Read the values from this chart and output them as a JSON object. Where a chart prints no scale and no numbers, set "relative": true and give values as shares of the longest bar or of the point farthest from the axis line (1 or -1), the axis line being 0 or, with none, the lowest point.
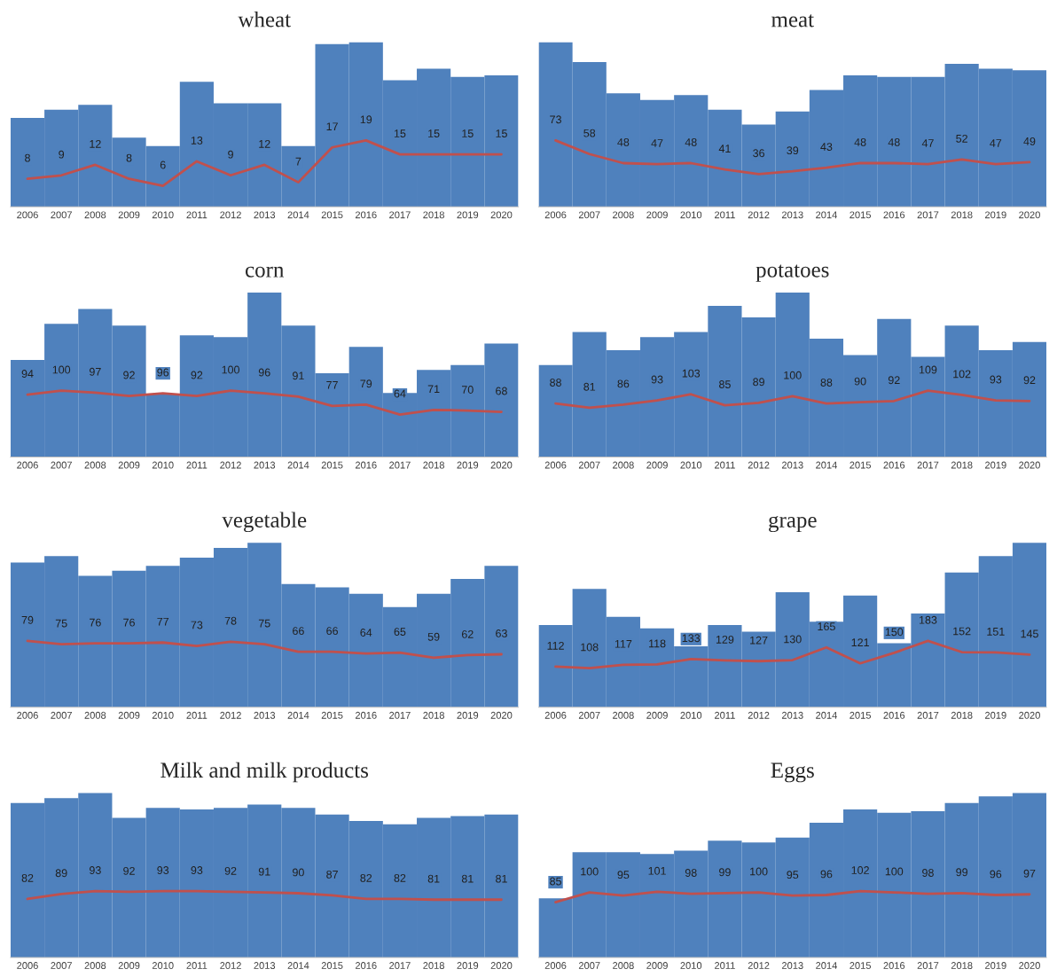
{
  "chart_data": [
    {
      "type": "bar",
      "title": "wheat",
      "relative": true,
      "categories": [
        "2006",
        "2007",
        "2008",
        "2009",
        "2010",
        "2011",
        "2012",
        "2013",
        "2014",
        "2015",
        "2016",
        "2017",
        "2018",
        "2019",
        "2020"
      ],
      "color": "#4f81bd",
      "values": [
        0.54,
        0.59,
        0.62,
        0.42,
        0.37,
        0.76,
        0.63,
        0.63,
        0.37,
        0.99,
        1,
        0.77,
        0.84,
        0.79,
        0.8
      ]
    },
    {
      "type": "line",
      "categories": [
        "2006",
        "2007",
        "2008",
        "2009",
        "2010",
        "2011",
        "2012",
        "2013",
        "2014",
        "2015",
        "2016",
        "2017",
        "2018",
        "2019",
        "2020"
      ],
      "color": "#c0504d",
      "data_labels": true,
      "tick_labels": false,
      "values": [
        8,
        9,
        12,
        8,
        6,
        13,
        9,
        12,
        7,
        17,
        19,
        15,
        15,
        15,
        15
      ]
    },
    {
      "type": "bar",
      "title": "meat",
      "relative": true,
      "categories": [
        "2006",
        "2007",
        "2008",
        "2009",
        "2010",
        "2011",
        "2012",
        "2013",
        "2014",
        "2015",
        "2016",
        "2017",
        "2018",
        "2019",
        "2020"
      ],
      "color": "#4f81bd",
      "values": [
        1,
        0.88,
        0.69,
        0.65,
        0.68,
        0.59,
        0.5,
        0.58,
        0.71,
        0.8,
        0.79,
        0.79,
        0.87,
        0.84,
        0.83
      ]
    },
    {
      "type": "line",
      "categories": [
        "2006",
        "2007",
        "2008",
        "2009",
        "2010",
        "2011",
        "2012",
        "2013",
        "2014",
        "2015",
        "2016",
        "2017",
        "2018",
        "2019",
        "2020"
      ],
      "color": "#c0504d",
      "data_labels": true,
      "tick_labels": false,
      "values": [
        73,
        58,
        48,
        47,
        48,
        41,
        36,
        39,
        43,
        48,
        48,
        47,
        52,
        47,
        49
      ]
    },
    {
      "type": "bar",
      "title": "corn",
      "relative": true,
      "categories": [
        "2006",
        "2007",
        "2008",
        "2009",
        "2010",
        "2011",
        "2012",
        "2013",
        "2014",
        "2015",
        "2016",
        "2017",
        "2018",
        "2019",
        "2020"
      ],
      "color": "#4f81bd",
      "values": [
        0.59,
        0.81,
        0.9,
        0.8,
        0.38,
        0.74,
        0.73,
        1,
        0.8,
        0.51,
        0.67,
        0.39,
        0.53,
        0.56,
        0.69
      ]
    },
    {
      "type": "line",
      "categories": [
        "2006",
        "2007",
        "2008",
        "2009",
        "2010",
        "2011",
        "2012",
        "2013",
        "2014",
        "2015",
        "2016",
        "2017",
        "2018",
        "2019",
        "2020"
      ],
      "color": "#c0504d",
      "data_labels": true,
      "tick_labels": false,
      "values": [
        94,
        100,
        97,
        92,
        96,
        92,
        100,
        96,
        91,
        77,
        79,
        64,
        71,
        70,
        68
      ]
    },
    {
      "type": "bar",
      "title": "potatoes",
      "relative": true,
      "categories": [
        "2006",
        "2007",
        "2008",
        "2009",
        "2010",
        "2011",
        "2012",
        "2013",
        "2014",
        "2015",
        "2016",
        "2017",
        "2018",
        "2019",
        "2020"
      ],
      "color": "#4f81bd",
      "values": [
        0.56,
        0.76,
        0.65,
        0.73,
        0.76,
        0.92,
        0.85,
        1,
        0.72,
        0.62,
        0.84,
        0.61,
        0.8,
        0.65,
        0.7
      ]
    },
    {
      "type": "line",
      "categories": [
        "2006",
        "2007",
        "2008",
        "2009",
        "2010",
        "2011",
        "2012",
        "2013",
        "2014",
        "2015",
        "2016",
        "2017",
        "2018",
        "2019",
        "2020"
      ],
      "color": "#c0504d",
      "data_labels": true,
      "tick_labels": false,
      "values": [
        88,
        81,
        86,
        93,
        103,
        85,
        89,
        100,
        88,
        90,
        92,
        109,
        102,
        93,
        92
      ]
    },
    {
      "type": "bar",
      "title": "vegetable",
      "relative": true,
      "categories": [
        "2006",
        "2007",
        "2008",
        "2009",
        "2010",
        "2011",
        "2012",
        "2013",
        "2014",
        "2015",
        "2016",
        "2017",
        "2018",
        "2019",
        "2020"
      ],
      "color": "#4f81bd",
      "values": [
        0.88,
        0.92,
        0.8,
        0.83,
        0.86,
        0.91,
        0.97,
        1,
        0.75,
        0.73,
        0.69,
        0.61,
        0.69,
        0.78,
        0.86
      ]
    },
    {
      "type": "line",
      "categories": [
        "2006",
        "2007",
        "2008",
        "2009",
        "2010",
        "2011",
        "2012",
        "2013",
        "2014",
        "2015",
        "2016",
        "2017",
        "2018",
        "2019",
        "2020"
      ],
      "color": "#c0504d",
      "data_labels": true,
      "tick_labels": false,
      "values": [
        79,
        75,
        76,
        76,
        77,
        73,
        78,
        75,
        66,
        66,
        64,
        65,
        59,
        62,
        63
      ]
    },
    {
      "type": "bar",
      "title": "grape",
      "relative": true,
      "categories": [
        "2006",
        "2007",
        "2008",
        "2009",
        "2010",
        "2011",
        "2012",
        "2013",
        "2014",
        "2015",
        "2016",
        "2017",
        "2018",
        "2019",
        "2020"
      ],
      "color": "#4f81bd",
      "values": [
        0.5,
        0.72,
        0.55,
        0.48,
        0.37,
        0.5,
        0.46,
        0.7,
        0.52,
        0.68,
        0.39,
        0.57,
        0.82,
        0.92,
        1
      ]
    },
    {
      "type": "line",
      "categories": [
        "2006",
        "2007",
        "2008",
        "2009",
        "2010",
        "2011",
        "2012",
        "2013",
        "2014",
        "2015",
        "2016",
        "2017",
        "2018",
        "2019",
        "2020"
      ],
      "color": "#c0504d",
      "data_labels": true,
      "tick_labels": false,
      "values": [
        112,
        108,
        117,
        118,
        133,
        129,
        127,
        130,
        165,
        121,
        150,
        183,
        152,
        151,
        145
      ]
    },
    {
      "type": "bar",
      "title": "Milk and milk products",
      "relative": true,
      "categories": [
        "2006",
        "2007",
        "2008",
        "2009",
        "2010",
        "2011",
        "2012",
        "2013",
        "2014",
        "2015",
        "2016",
        "2017",
        "2018",
        "2019",
        "2020"
      ],
      "color": "#4f81bd",
      "values": [
        0.94,
        0.97,
        1,
        0.85,
        0.91,
        0.9,
        0.91,
        0.93,
        0.91,
        0.87,
        0.83,
        0.81,
        0.85,
        0.86,
        0.87
      ]
    },
    {
      "type": "line",
      "categories": [
        "2006",
        "2007",
        "2008",
        "2009",
        "2010",
        "2011",
        "2012",
        "2013",
        "2014",
        "2015",
        "2016",
        "2017",
        "2018",
        "2019",
        "2020"
      ],
      "color": "#c0504d",
      "data_labels": true,
      "tick_labels": false,
      "values": [
        82,
        89,
        93,
        92,
        93,
        93,
        92,
        91,
        90,
        87,
        82,
        82,
        81,
        81,
        81
      ]
    },
    {
      "type": "bar",
      "title": "Eggs",
      "relative": true,
      "categories": [
        "2006",
        "2007",
        "2008",
        "2009",
        "2010",
        "2011",
        "2012",
        "2013",
        "2014",
        "2015",
        "2016",
        "2017",
        "2018",
        "2019",
        "2020"
      ],
      "color": "#4f81bd",
      "values": [
        0.36,
        0.64,
        0.64,
        0.63,
        0.65,
        0.71,
        0.7,
        0.73,
        0.82,
        0.9,
        0.88,
        0.89,
        0.94,
        0.98,
        1
      ]
    },
    {
      "type": "line",
      "categories": [
        "2006",
        "2007",
        "2008",
        "2009",
        "2010",
        "2011",
        "2012",
        "2013",
        "2014",
        "2015",
        "2016",
        "2017",
        "2018",
        "2019",
        "2020"
      ],
      "color": "#c0504d",
      "data_labels": true,
      "tick_labels": false,
      "values": [
        85,
        100,
        95,
        101,
        98,
        99,
        100,
        95,
        96,
        102,
        100,
        98,
        99,
        96,
        97
      ]
    }
  ]
}
